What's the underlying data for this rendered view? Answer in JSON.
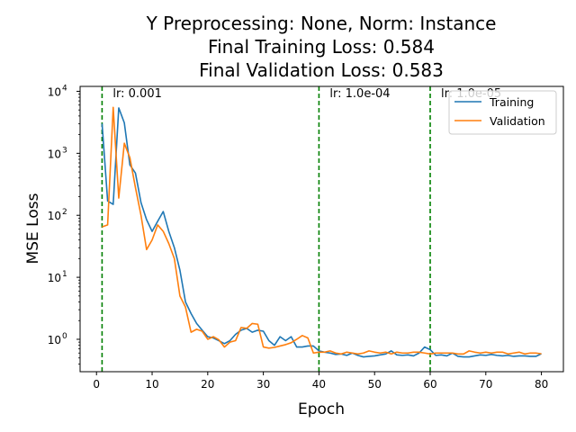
{
  "chart_data": {
    "type": "line",
    "title": [
      "Y Preprocessing: None, Norm: Instance",
      "Final Training Loss: 0.584",
      "Final Validation Loss: 0.583"
    ],
    "xlabel": "Epoch",
    "ylabel": "MSE Loss",
    "xlim": [
      -2.95,
      83.95
    ],
    "ylim": [
      0.3,
      12000
    ],
    "yscale": "log",
    "xticks": [
      0,
      10,
      20,
      30,
      40,
      50,
      60,
      70,
      80
    ],
    "yticks": [
      {
        "base": "10",
        "exp": "0",
        "value": 1
      },
      {
        "base": "10",
        "exp": "1",
        "value": 10
      },
      {
        "base": "10",
        "exp": "2",
        "value": 100
      },
      {
        "base": "10",
        "exp": "3",
        "value": 1000
      },
      {
        "base": "10",
        "exp": "4",
        "value": 10000
      }
    ],
    "grid": false,
    "legend_position": "upper right",
    "lr_markers": [
      {
        "x": 1,
        "label": "lr: 0.001"
      },
      {
        "x": 40,
        "label": "lr: 1.0e-04"
      },
      {
        "x": 60,
        "label": "lr: 1.0e-05"
      }
    ],
    "lr_line_color": "#008000",
    "series": [
      {
        "name": "Training",
        "color": "#1f77b4",
        "x": [
          1,
          2,
          3,
          4,
          5,
          6,
          7,
          8,
          9,
          10,
          11,
          12,
          13,
          14,
          15,
          16,
          17,
          18,
          19,
          20,
          21,
          22,
          23,
          24,
          25,
          26,
          27,
          28,
          29,
          30,
          31,
          32,
          33,
          34,
          35,
          36,
          37,
          38,
          39,
          40,
          41,
          42,
          43,
          44,
          45,
          46,
          47,
          48,
          49,
          50,
          51,
          52,
          53,
          54,
          55,
          56,
          57,
          58,
          59,
          60,
          61,
          62,
          63,
          64,
          65,
          66,
          67,
          68,
          69,
          70,
          71,
          72,
          73,
          74,
          75,
          76,
          77,
          78,
          79,
          80
        ],
        "y": [
          3000,
          170,
          150,
          5400,
          3100,
          650,
          480,
          160,
          85,
          55,
          80,
          115,
          55,
          30,
          13,
          4,
          2.6,
          1.8,
          1.4,
          1.1,
          1.05,
          0.95,
          0.85,
          0.95,
          1.2,
          1.4,
          1.5,
          1.3,
          1.4,
          1.35,
          0.95,
          0.8,
          1.1,
          0.95,
          1.1,
          0.75,
          0.75,
          0.78,
          0.78,
          0.65,
          0.62,
          0.6,
          0.57,
          0.58,
          0.55,
          0.6,
          0.55,
          0.52,
          0.53,
          0.54,
          0.56,
          0.58,
          0.65,
          0.56,
          0.55,
          0.56,
          0.54,
          0.6,
          0.75,
          0.68,
          0.55,
          0.56,
          0.54,
          0.6,
          0.53,
          0.52,
          0.52,
          0.54,
          0.56,
          0.55,
          0.57,
          0.55,
          0.54,
          0.55,
          0.53,
          0.54,
          0.54,
          0.53,
          0.53,
          0.584
        ]
      },
      {
        "name": "Validation",
        "color": "#ff7f0e",
        "x": [
          1,
          2,
          3,
          4,
          5,
          6,
          7,
          8,
          9,
          10,
          11,
          12,
          13,
          14,
          15,
          16,
          17,
          18,
          19,
          20,
          21,
          22,
          23,
          24,
          25,
          26,
          27,
          28,
          29,
          30,
          31,
          32,
          33,
          34,
          35,
          36,
          37,
          38,
          39,
          40,
          41,
          42,
          43,
          44,
          45,
          46,
          47,
          48,
          49,
          50,
          51,
          52,
          53,
          54,
          55,
          56,
          57,
          58,
          59,
          60,
          61,
          62,
          63,
          64,
          65,
          66,
          67,
          68,
          69,
          70,
          71,
          72,
          73,
          74,
          75,
          76,
          77,
          78,
          79,
          80
        ],
        "y": [
          65,
          70,
          5500,
          190,
          1450,
          850,
          280,
          100,
          28,
          40,
          70,
          55,
          35,
          20,
          5,
          3.3,
          1.3,
          1.45,
          1.35,
          1.0,
          1.1,
          0.98,
          0.75,
          0.9,
          0.95,
          1.55,
          1.5,
          1.8,
          1.75,
          0.75,
          0.72,
          0.74,
          0.78,
          0.82,
          0.88,
          1.0,
          1.15,
          1.05,
          0.6,
          0.62,
          0.62,
          0.65,
          0.6,
          0.58,
          0.62,
          0.6,
          0.58,
          0.6,
          0.65,
          0.62,
          0.6,
          0.62,
          0.58,
          0.62,
          0.6,
          0.6,
          0.62,
          0.62,
          0.6,
          0.58,
          0.6,
          0.6,
          0.6,
          0.6,
          0.58,
          0.58,
          0.65,
          0.62,
          0.6,
          0.62,
          0.6,
          0.62,
          0.62,
          0.58,
          0.6,
          0.62,
          0.58,
          0.6,
          0.6,
          0.583
        ]
      }
    ]
  }
}
